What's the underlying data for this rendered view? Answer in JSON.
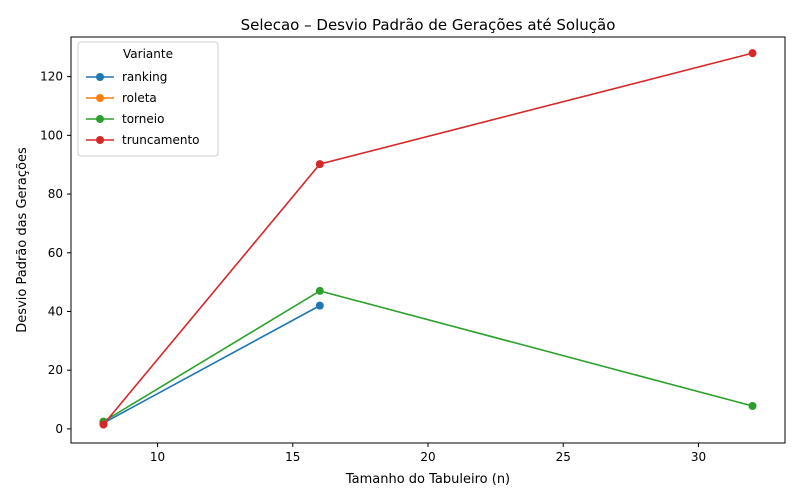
{
  "chart_data": {
    "type": "line",
    "title": "Selecao – Desvio Padrão de Gerações até Solução",
    "xlabel": "Tamanho do Tabuleiro (n)",
    "ylabel": "Desvio Padrão das Gerações",
    "xlim": [
      6.8,
      33.2
    ],
    "ylim": [
      -4.8,
      133.5
    ],
    "xticks": [
      10,
      15,
      20,
      25,
      30
    ],
    "yticks": [
      0,
      20,
      40,
      60,
      80,
      100,
      120
    ],
    "grid": false,
    "legend": {
      "title": "Variante",
      "position": "top-left"
    },
    "series": [
      {
        "name": "ranking",
        "color": "#1f77b4",
        "x": [
          8,
          16
        ],
        "y": [
          2.0,
          42.0
        ]
      },
      {
        "name": "roleta",
        "color": "#ff7f0e",
        "x": [
          8
        ],
        "y": [
          2.5
        ]
      },
      {
        "name": "torneio",
        "color": "#2ca02c",
        "x": [
          8,
          16,
          32
        ],
        "y": [
          2.5,
          47.0,
          7.8
        ]
      },
      {
        "name": "truncamento",
        "color": "#d62728",
        "x": [
          8,
          16,
          32
        ],
        "y": [
          1.5,
          90.2,
          128.0
        ]
      }
    ]
  }
}
